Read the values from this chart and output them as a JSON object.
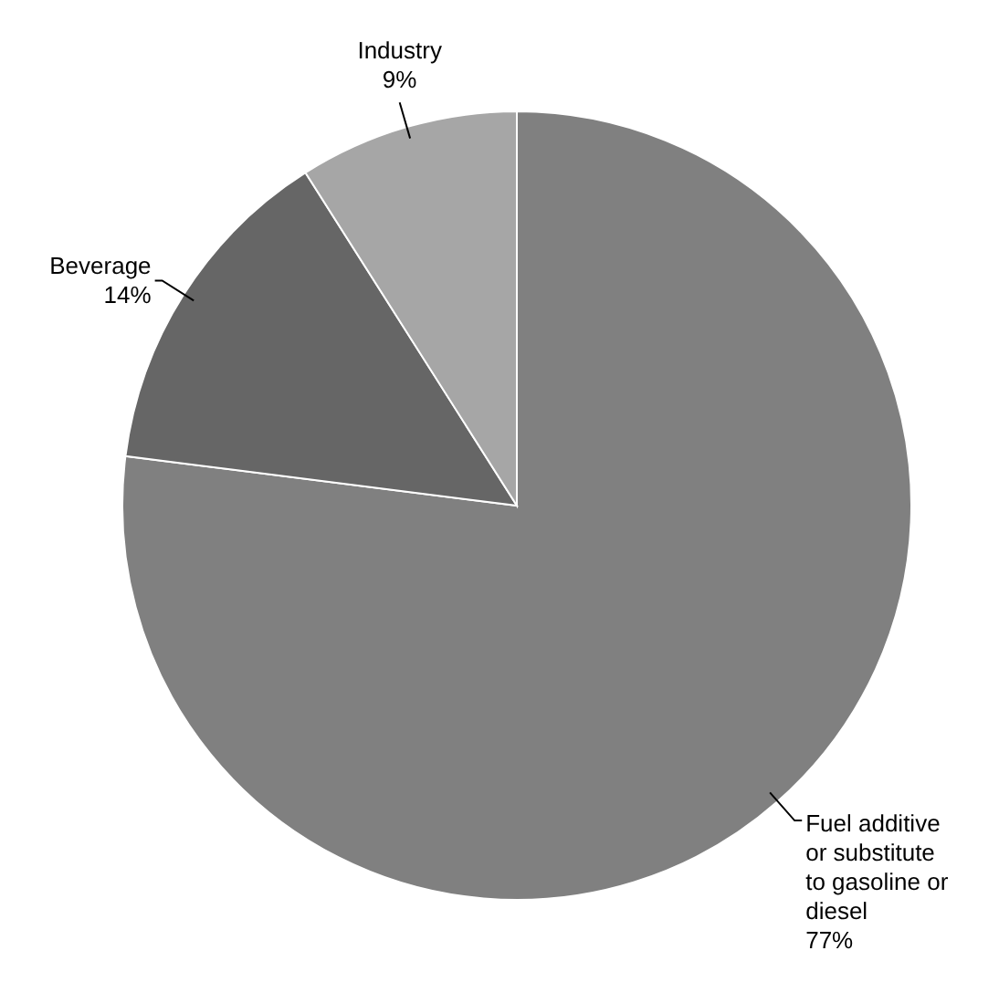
{
  "chart_data": {
    "type": "pie",
    "categories": [
      "Fuel additive or substitute to gasoline or diesel",
      "Beverage",
      "Industry"
    ],
    "values": [
      77,
      14,
      9
    ],
    "value_labels": [
      "77%",
      "14%",
      "9%"
    ],
    "colors": [
      "#808080",
      "#666666",
      "#a6a6a6"
    ],
    "legend": false
  }
}
